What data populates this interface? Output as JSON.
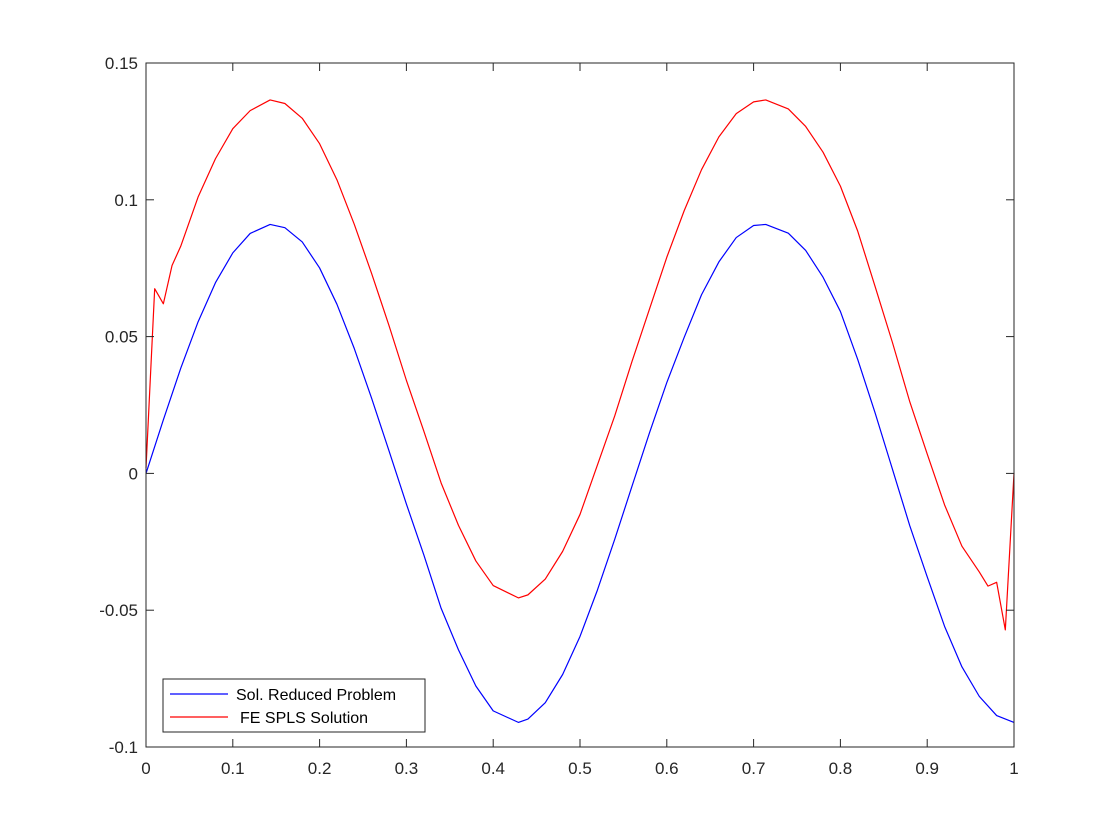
{
  "chart_data": {
    "type": "line",
    "title": "",
    "xlabel": "",
    "ylabel": "",
    "xlim": [
      0,
      1
    ],
    "ylim": [
      -0.1,
      0.15
    ],
    "grid": false,
    "legend_position": "bottom-left",
    "x_ticks": [
      "0",
      "0.1",
      "0.2",
      "0.3",
      "0.4",
      "0.5",
      "0.6",
      "0.7",
      "0.8",
      "0.9",
      "1"
    ],
    "y_ticks": [
      "-0.1",
      "-0.05",
      "0",
      "0.05",
      "0.1",
      "0.15"
    ],
    "x_tick_values": [
      0,
      0.1,
      0.2,
      0.3,
      0.4,
      0.5,
      0.6,
      0.7,
      0.8,
      0.9,
      1
    ],
    "y_tick_values": [
      -0.1,
      -0.05,
      0,
      0.05,
      0.1,
      0.15
    ],
    "series": [
      {
        "name": "Sol. Reduced Problem",
        "color": "#0000ff",
        "x": [
          0,
          0.02,
          0.04,
          0.06,
          0.08,
          0.1,
          0.12,
          0.143,
          0.16,
          0.18,
          0.2,
          0.22,
          0.24,
          0.26,
          0.28,
          0.3,
          0.32,
          0.34,
          0.36,
          0.38,
          0.4,
          0.429,
          0.44,
          0.46,
          0.48,
          0.5,
          0.52,
          0.54,
          0.56,
          0.58,
          0.6,
          0.62,
          0.64,
          0.66,
          0.68,
          0.7,
          0.714,
          0.74,
          0.76,
          0.78,
          0.8,
          0.82,
          0.84,
          0.86,
          0.88,
          0.9,
          0.92,
          0.94,
          0.96,
          0.98,
          1
        ],
        "y": [
          0,
          0.0196,
          0.0384,
          0.0554,
          0.0697,
          0.0806,
          0.0877,
          0.091,
          0.0898,
          0.0846,
          0.0751,
          0.0618,
          0.0456,
          0.0274,
          0.0082,
          -0.0112,
          -0.0297,
          -0.0493,
          -0.0645,
          -0.0777,
          -0.0868,
          -0.091,
          -0.0898,
          -0.0838,
          -0.0735,
          -0.0596,
          -0.0427,
          -0.0241,
          -0.0046,
          0.0148,
          0.0332,
          0.0497,
          0.0653,
          0.0773,
          0.0862,
          0.0906,
          0.091,
          0.0878,
          0.0815,
          0.0717,
          0.0592,
          0.0416,
          0.0221,
          0.0015,
          -0.0192,
          -0.0378,
          -0.0559,
          -0.0707,
          -0.0815,
          -0.0885,
          -0.091
        ]
      },
      {
        "name": "FE SPLS Solution",
        "color": "#ff0000",
        "x": [
          0,
          0.01,
          0.02,
          0.03,
          0.04,
          0.06,
          0.08,
          0.1,
          0.12,
          0.143,
          0.16,
          0.18,
          0.2,
          0.22,
          0.24,
          0.26,
          0.28,
          0.3,
          0.32,
          0.34,
          0.36,
          0.38,
          0.4,
          0.429,
          0.44,
          0.46,
          0.48,
          0.5,
          0.52,
          0.54,
          0.56,
          0.58,
          0.6,
          0.62,
          0.64,
          0.66,
          0.68,
          0.7,
          0.714,
          0.74,
          0.76,
          0.78,
          0.8,
          0.82,
          0.84,
          0.86,
          0.88,
          0.9,
          0.92,
          0.94,
          0.96,
          0.97,
          0.98,
          0.99,
          1
        ],
        "y": [
          0.002,
          0.0675,
          0.062,
          0.076,
          0.083,
          0.101,
          0.115,
          0.126,
          0.1326,
          0.1365,
          0.1352,
          0.1298,
          0.1205,
          0.1073,
          0.091,
          0.073,
          0.054,
          0.034,
          0.0155,
          -0.0035,
          -0.019,
          -0.032,
          -0.041,
          -0.0455,
          -0.0444,
          -0.0386,
          -0.0285,
          -0.015,
          0.003,
          0.021,
          0.041,
          0.06,
          0.079,
          0.096,
          0.111,
          0.123,
          0.1315,
          0.1358,
          0.1365,
          0.1332,
          0.1268,
          0.1174,
          0.105,
          0.0885,
          0.0683,
          0.0478,
          0.0261,
          0.0071,
          -0.0115,
          -0.0266,
          -0.036,
          -0.0412,
          -0.0398,
          -0.0572,
          0
        ]
      }
    ]
  }
}
